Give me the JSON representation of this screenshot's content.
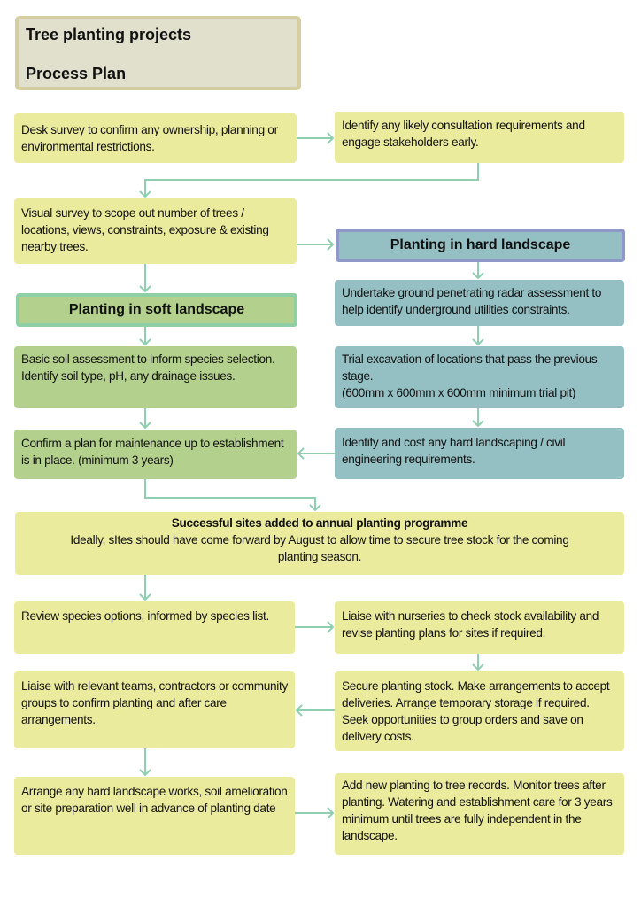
{
  "title": {
    "line1": "Tree planting projects",
    "line2": "Process Plan"
  },
  "colors": {
    "step": "#ebeb9e",
    "soft": "#b3d08d",
    "hard": "#94bfc3",
    "connector": "#8fcfb0",
    "hard_border": "#8f98c8",
    "soft_border": "#8fcfa6"
  },
  "steps": {
    "desk_survey": "Desk survey to confirm any ownership, planning or environmental restrictions.",
    "consultation": "Identify any likely consultation requirements and engage stakeholders early.",
    "visual_survey": "Visual survey to scope out number of trees / locations, views, constraints, exposure & existing nearby trees.",
    "hard_heading": "Planting in hard landscape",
    "soft_heading": "Planting in soft landscape",
    "radar": "Undertake ground penetrating radar assessment to help identify underground utilities constraints.",
    "soil_1": "Basic soil assessment to inform species selection.",
    "soil_2": "Identify soil type, pH, any drainage issues.",
    "trial_1": "Trial excavation of locations that pass the previous stage.",
    "trial_2": "(600mm x 600mm x 600mm minimum trial pit)",
    "maintenance": "Confirm a plan for maintenance up to establishment is in place.  (minimum 3 years)",
    "hard_costs": "Identify and cost any hard landscaping / civil engineering requirements.",
    "programme_title": "Successful sites added to annual planting programme",
    "programme_text": "Ideally, sItes should have come forward by August to allow time to secure tree stock for the coming planting season.",
    "species": "Review species options, informed by species list.",
    "nurseries": "Liaise with nurseries to check stock availability and revise planting plans for sites if required.",
    "stock": "Secure planting stock. Make arrangements to accept deliveries. Arrange temporary storage if required. Seek opportunities to group orders and save on delivery costs.",
    "teams": "Liaise with relevant teams, contractors or community groups to confirm planting and after care arrangements.",
    "works": "Arrange any hard landscape works, soil amelioration or site preparation well in advance of planting date",
    "records": "Add new planting to tree records. Monitor trees after planting. Watering and establishment care for 3 years minimum until trees are fully independent in the landscape."
  }
}
